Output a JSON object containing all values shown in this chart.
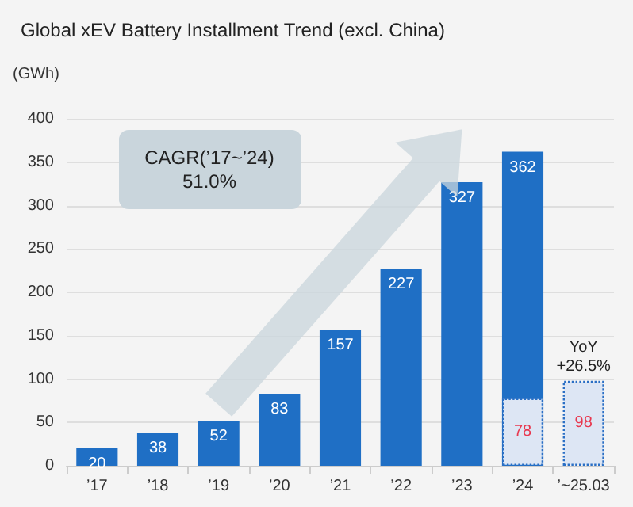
{
  "chart_data": {
    "type": "bar",
    "title": "Global xEV Battery Installment Trend (excl. China)",
    "ylabel": "(GWh)",
    "categories": [
      "’17",
      "’18",
      "’19",
      "’20",
      "’21",
      "’22",
      "’23",
      "’24",
      "’~25.03"
    ],
    "series": [
      {
        "color": "#1f6fc5",
        "values": [
          20,
          38,
          52,
          83,
          157,
          227,
          327,
          362,
          null
        ]
      },
      {
        "color": "#dde6f4",
        "values": [
          null,
          null,
          null,
          null,
          null,
          null,
          null,
          78,
          98
        ]
      }
    ],
    "data_labels": true,
    "ylim": [
      0,
      400
    ],
    "yticks": [
      0,
      50,
      100,
      150,
      200,
      250,
      300,
      350,
      400
    ],
    "grid": "y",
    "annotations": [
      "CAGR(’17~’24)\n51.0%",
      {
        "text": "YoY\n+26.5%",
        "x": "’~25.03",
        "y": 98
      }
    ]
  }
}
